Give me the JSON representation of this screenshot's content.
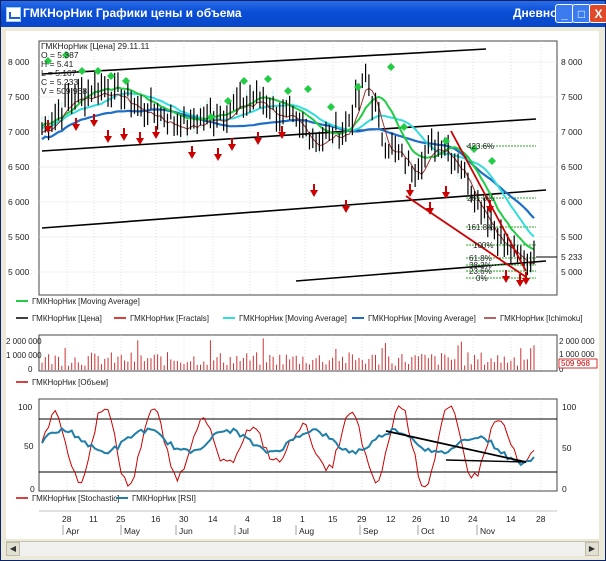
{
  "window": {
    "title": "ГМКНорНик Графики цены и объема",
    "mode": "Дневной",
    "minimize_glyph": "_",
    "maximize_glyph": "□",
    "close_glyph": "X"
  },
  "price_panel": {
    "info": {
      "header": "ГМКНорНик [Цена] 29.11.11",
      "o": "O = 5.387",
      "h": "H = 5.41",
      "l": "L = 5.167",
      "c": "C = 5.233",
      "v": "V = 509 968"
    },
    "y_ticks_left": [
      "8 000",
      "7 500",
      "7 000",
      "6 500",
      "6 000",
      "5 500",
      "5 000"
    ],
    "y_ticks_right": [
      "8 000",
      "7 500",
      "7 000",
      "6 500",
      "6 000",
      "5 500",
      "5 000"
    ],
    "last_price_label": "5 233",
    "fib_levels": [
      "423.6%",
      "261.8%",
      "161.8%",
      "100%",
      "61.8%",
      "38.2%",
      "23.6%",
      "0%"
    ]
  },
  "legend_price": {
    "row1": [
      {
        "label": "ГМКНорНик [Moving Average]",
        "color": "#22cc44"
      }
    ],
    "row2": [
      {
        "label": "ГМКНорНик [Цена]",
        "color": "#000000"
      },
      {
        "label": "ГМКНорНик [Fractals]",
        "color": "#cc0000"
      },
      {
        "label": "ГМКНорНик [Moving Average]",
        "color": "#33dddd"
      },
      {
        "label": "ГМКНорНик [Moving Average]",
        "color": "#1f6fc8"
      },
      {
        "label": "ГМКНорНик [Ichimoku]",
        "color": "#993333"
      }
    ]
  },
  "volume_panel": {
    "y_ticks_left": [
      "2 000 000",
      "1 000 000",
      "0"
    ],
    "y_ticks_right": [
      "2 000 000",
      "1 000 000",
      "0"
    ],
    "last_volume_label": "509 968",
    "legend": {
      "label": "ГМКНорНик [Объем]",
      "color": "#cc0000"
    }
  },
  "osc_panel": {
    "y_ticks_left": [
      "100",
      "50",
      "0"
    ],
    "y_ticks_right": [
      "100",
      "50",
      "0"
    ],
    "legend": [
      {
        "label": "ГМКНорНик [Stochastic]",
        "color": "#cc0000"
      },
      {
        "label": "ГМКНорНик [RSI]",
        "color": "#1f7fa8"
      }
    ]
  },
  "x_axis": {
    "days": [
      "28",
      "11",
      "25",
      "16",
      "30",
      "14",
      "4",
      "18",
      "1",
      "15",
      "29",
      "12",
      "26",
      "10",
      "24",
      "14",
      "28"
    ],
    "months": [
      "Apr",
      "May",
      "Jun",
      "Jul",
      "Aug",
      "Sep",
      "Oct",
      "Nov"
    ]
  },
  "colors": {
    "price_line": "#000000",
    "ma_green": "#22cc44",
    "ma_cyan": "#33dddd",
    "ma_blue": "#1f6fc8",
    "ichimoku": "#993333",
    "fractal_up": "#22cc44",
    "fractal_down": "#cc0000",
    "fib": "#22aa22",
    "title_bar": "#0a4fd6"
  }
}
